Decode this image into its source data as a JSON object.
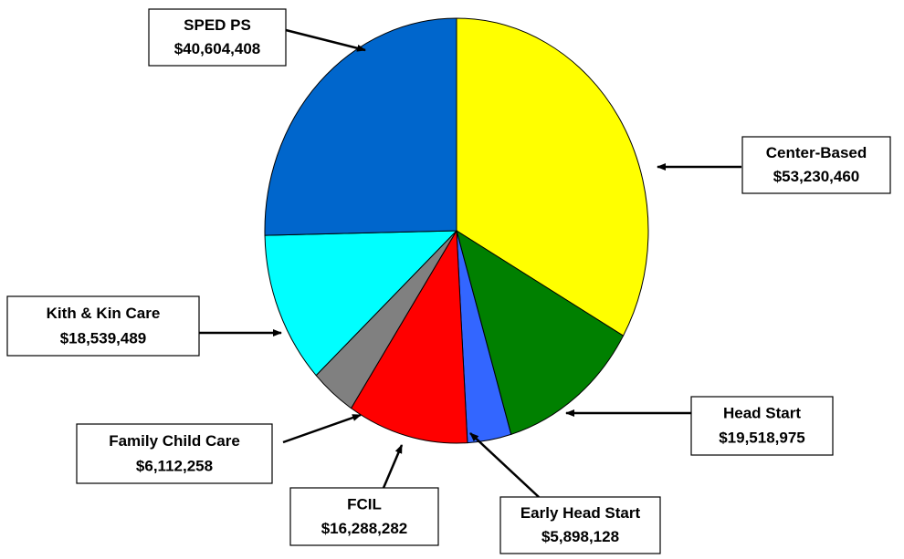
{
  "chart_data": {
    "type": "pie",
    "categories": [
      "Center-Based",
      "Head Start",
      "Early Head Start",
      "FCIL",
      "Family Child Care",
      "Kith & Kin Care",
      "SPED PS"
    ],
    "values": [
      53230460,
      19518975,
      5898128,
      16288282,
      6112258,
      18539489,
      40604408
    ],
    "value_labels": [
      "$53,230,460",
      "$19,518,975",
      "$5,898,128",
      "$16,288,282",
      "$6,112,258",
      "$18,539,489",
      "$40,604,408"
    ],
    "colors": [
      "#ffff00",
      "#008000",
      "#3366ff",
      "#ff0000",
      "#808080",
      "#00ffff",
      "#0066cc"
    ]
  }
}
